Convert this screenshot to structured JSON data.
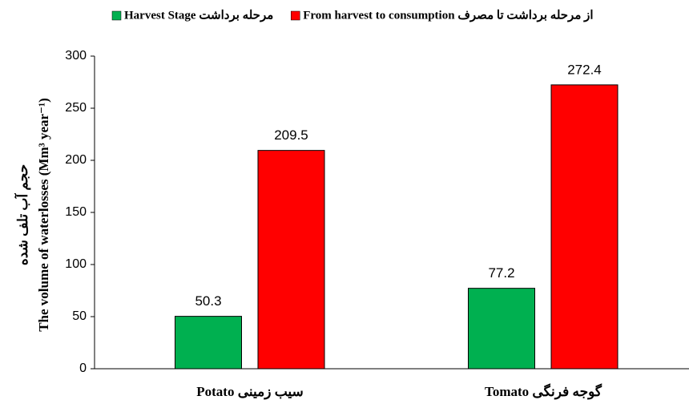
{
  "chart_data": {
    "type": "bar",
    "ylabel": [
      "حجم آب تلف شده",
      "The volume of waterlosses (Mm³ year⁻¹)"
    ],
    "categories": [
      "Potato سیب زمینی",
      "Tomato گوجه فرنگی"
    ],
    "series": [
      {
        "name": "Harvest Stage مرحله برداشت",
        "color": "#00b050",
        "values": [
          50.3,
          77.2
        ]
      },
      {
        "name": "From harvest to consumption از مرحله برداشت تا مصرف",
        "color": "#ff0000",
        "values": [
          209.5,
          272.4
        ]
      }
    ],
    "ylim": [
      0,
      300
    ],
    "yticks": [
      0,
      50,
      100,
      150,
      200,
      250,
      300
    ],
    "grid": false,
    "legend": "top"
  }
}
